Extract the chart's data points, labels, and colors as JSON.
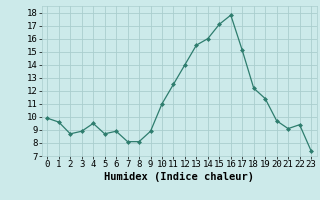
{
  "x": [
    0,
    1,
    2,
    3,
    4,
    5,
    6,
    7,
    8,
    9,
    10,
    11,
    12,
    13,
    14,
    15,
    16,
    17,
    18,
    19,
    20,
    21,
    22,
    23
  ],
  "y": [
    9.9,
    9.6,
    8.7,
    8.9,
    9.5,
    8.7,
    8.9,
    8.1,
    8.1,
    8.9,
    11.0,
    12.5,
    14.0,
    15.5,
    16.0,
    17.1,
    17.8,
    15.1,
    12.2,
    11.4,
    9.7,
    9.1,
    9.4,
    7.4
  ],
  "line_color": "#2e7d6e",
  "marker": "D",
  "marker_size": 2,
  "bg_color": "#cceaea",
  "grid_color": "#aacece",
  "xlabel": "Humidex (Indice chaleur)",
  "xlim": [
    -0.5,
    23.5
  ],
  "ylim": [
    7,
    18.5
  ],
  "xtick_labels": [
    "0",
    "1",
    "2",
    "3",
    "4",
    "5",
    "6",
    "7",
    "8",
    "9",
    "10",
    "11",
    "12",
    "13",
    "14",
    "15",
    "16",
    "17",
    "18",
    "19",
    "20",
    "21",
    "22",
    "23"
  ],
  "ytick_values": [
    7,
    8,
    9,
    10,
    11,
    12,
    13,
    14,
    15,
    16,
    17,
    18
  ],
  "xlabel_fontsize": 7.5,
  "tick_fontsize": 6.5
}
